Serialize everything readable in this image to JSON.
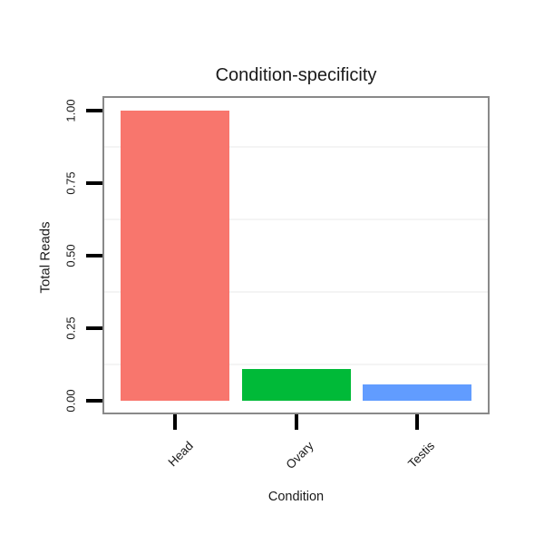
{
  "chart_data": {
    "type": "bar",
    "title": "Condition-specificity",
    "xlabel": "Condition",
    "ylabel": "Total Reads",
    "categories": [
      "Head",
      "Ovary",
      "Testis"
    ],
    "values": [
      1.0,
      0.11,
      0.055
    ],
    "bar_colors": [
      "#F8766D",
      "#00BA38",
      "#619CFF"
    ],
    "ylim": [
      0,
      1.0
    ],
    "ytick_labels": [
      "0.00",
      "0.25",
      "0.50",
      "0.75",
      "1.00"
    ],
    "ytick_values": [
      0,
      0.25,
      0.5,
      0.75,
      1.0
    ],
    "grid": "minor-horizontal-only",
    "legend": "none",
    "x_label_angle": 45,
    "y_label_angle": 90
  },
  "colors": {
    "background": "#FFFFFF",
    "panel_border": "#898989",
    "tick": "#000000",
    "text": "#1A1A1A",
    "gridline_minor": "#F4F4F4"
  }
}
